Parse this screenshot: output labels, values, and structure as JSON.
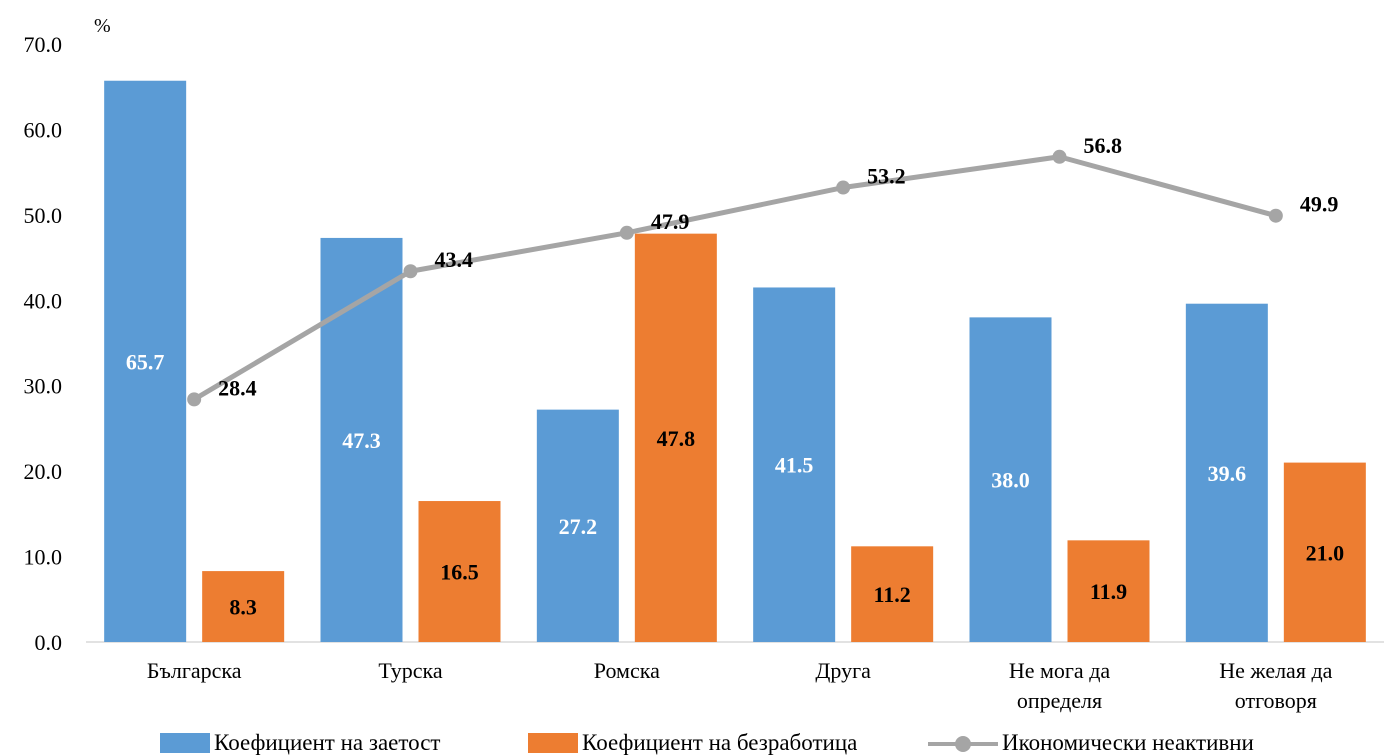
{
  "chart_data": {
    "type": "bar",
    "ylabel": "%",
    "ylim": [
      0,
      70
    ],
    "yticks": [
      "0.0",
      "10.0",
      "20.0",
      "30.0",
      "40.0",
      "50.0",
      "60.0",
      "70.0"
    ],
    "categories": [
      [
        "Българска"
      ],
      [
        "Турска"
      ],
      [
        "Ромска"
      ],
      [
        "Друга"
      ],
      [
        "Не мога да",
        "определя"
      ],
      [
        "Не желая да",
        "отговоря"
      ]
    ],
    "series": [
      {
        "name": "Коефициент на заетост",
        "kind": "bar",
        "color": "#5b9bd5",
        "values": [
          65.7,
          47.3,
          27.2,
          41.5,
          38.0,
          39.6
        ],
        "labels": [
          "65.7",
          "47.3",
          "27.2",
          "41.5",
          "38.0",
          "39.6"
        ]
      },
      {
        "name": "Коефициент на безработица",
        "kind": "bar",
        "color": "#ed7d31",
        "values": [
          8.3,
          16.5,
          47.8,
          11.2,
          11.9,
          21.0
        ],
        "labels": [
          "8.3",
          "16.5",
          "47.8",
          "11.2",
          "11.9",
          "21.0"
        ]
      },
      {
        "name": "Икономически неактивни",
        "kind": "line",
        "color": "#a5a5a5",
        "values": [
          28.4,
          43.4,
          47.9,
          53.2,
          56.8,
          49.9
        ],
        "labels": [
          "28.4",
          "43.4",
          "47.9",
          "53.2",
          "56.8",
          "49.9"
        ]
      }
    ],
    "legend": "bottom",
    "grid": false
  },
  "legend": {
    "items": [
      {
        "label": "Коефициент на заетост"
      },
      {
        "label": "Коефициент на безработица"
      },
      {
        "label": "Икономически неактивни"
      }
    ]
  }
}
